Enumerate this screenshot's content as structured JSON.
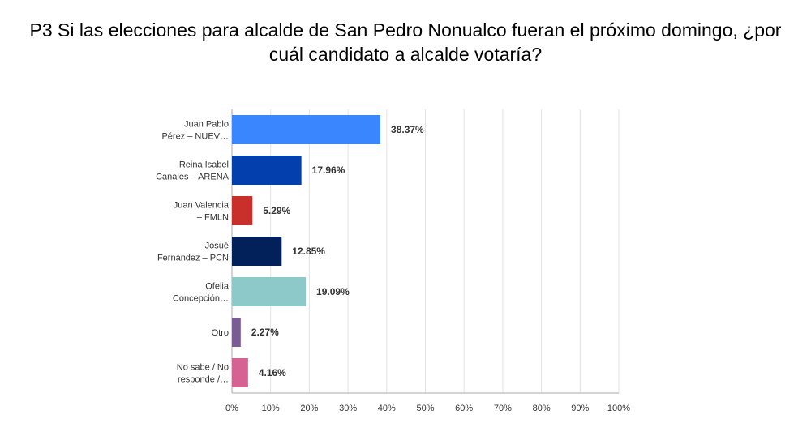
{
  "title": {
    "line1": "P3 Si las elecciones para alcalde de San Pedro Nonualco fueran el próximo domingo, ¿por",
    "line2": "cuál candidato a alcalde votaría?"
  },
  "chart_data": {
    "type": "bar",
    "orientation": "horizontal",
    "categories": [
      [
        "Juan Pablo",
        "Pérez – NUEV…"
      ],
      [
        "Reina Isabel",
        "Canales – ARENA"
      ],
      [
        "Juan Valencia",
        "– FMLN"
      ],
      [
        "Josué",
        "Fernández – PCN"
      ],
      [
        "Ofelia",
        "Concepción…"
      ],
      [
        "Otro"
      ],
      [
        "No sabe / No",
        "responde /…"
      ]
    ],
    "values": [
      38.37,
      17.96,
      5.29,
      12.85,
      19.09,
      2.27,
      4.16
    ],
    "value_labels": [
      "38.37%",
      "17.96%",
      "5.29%",
      "12.85%",
      "19.09%",
      "2.27%",
      "4.16%"
    ],
    "colors": [
      "#3a86ff",
      "#0440ad",
      "#c9302c",
      "#02205a",
      "#8ec9ca",
      "#7b5b96",
      "#d66293"
    ],
    "xlim": [
      0,
      100
    ],
    "x_ticks": [
      "0%",
      "10%",
      "20%",
      "30%",
      "40%",
      "50%",
      "60%",
      "70%",
      "80%",
      "90%",
      "100%"
    ],
    "grid": true,
    "legend": "none"
  }
}
